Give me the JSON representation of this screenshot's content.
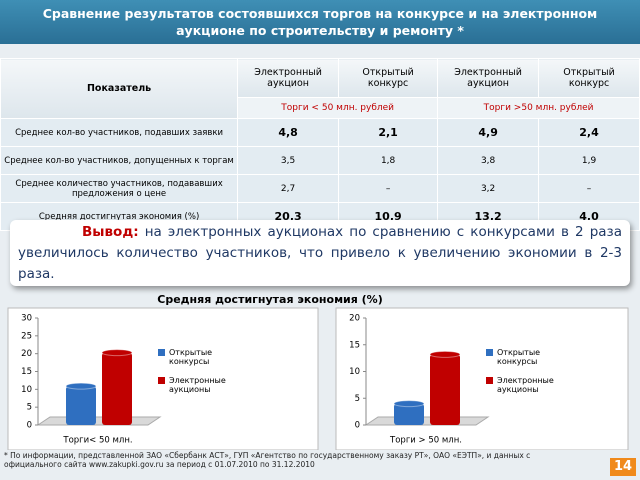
{
  "header": {
    "title": "Сравнение результатов состоявшихся торгов на конкурсе и на электронном аукционе по строительству и ремонту *"
  },
  "table": {
    "headers": [
      "Показатель",
      "Электронный аукцион",
      "Открытый конкурс",
      "Электронный аукцион",
      "Открытый конкурс"
    ],
    "subheaders": [
      "Торги < 50 млн. рублей",
      "Торги >50 млн. рублей"
    ],
    "rows": [
      [
        "Среднее кол-во участников, подавших заявки",
        "4,8",
        "2,1",
        "4,9",
        "2,4"
      ],
      [
        "Среднее кол-во участников, допущенных к торгам",
        "3,5",
        "1,8",
        "3,8",
        "1,9"
      ],
      [
        "Среднее количество участников, подававших предложения о цене",
        "2,7",
        "–",
        "3,2",
        "–"
      ],
      [
        "Средняя достигнутая экономия (%)",
        "20,3",
        "10,9",
        "13,2",
        "4,0"
      ]
    ]
  },
  "conclusion": {
    "label": "Вывод:",
    "text": "на электронных аукционах по сравнению с конкурсами в 2 раза увеличилось количество участников, что привело к увеличению экономии в 2-3 раза."
  },
  "charts_title": "Средняя достигнутая экономия (%)",
  "chart_data": [
    {
      "type": "bar",
      "categories": [
        "Торги< 50 млн."
      ],
      "ylim": [
        0,
        30
      ],
      "yticks": [
        0,
        5,
        10,
        15,
        20,
        25,
        30
      ],
      "series": [
        {
          "name": "Открытые конкурсы",
          "color": "#2f6fc0",
          "values": [
            10.9
          ]
        },
        {
          "name": "Электронные аукционы",
          "color": "#c00000",
          "values": [
            20.3
          ]
        }
      ]
    },
    {
      "type": "bar",
      "categories": [
        "Торги > 50 млн."
      ],
      "ylim": [
        0,
        20
      ],
      "yticks": [
        0,
        5,
        10,
        15,
        20
      ],
      "series": [
        {
          "name": "Открытые конкурсы",
          "color": "#2f6fc0",
          "values": [
            4.0
          ]
        },
        {
          "name": "Электронные аукционы",
          "color": "#c00000",
          "values": [
            13.2
          ]
        }
      ]
    }
  ],
  "footnote": "* По информации, представленной ЗАО «Сбербанк АСТ», ГУП «Агентство по государственному заказу РТ», ОАО «ЕЭТП», и данных с официального сайта www.zakupki.gov.ru за период с 01.07.2010 по 31.12.2010",
  "page_number": "14"
}
